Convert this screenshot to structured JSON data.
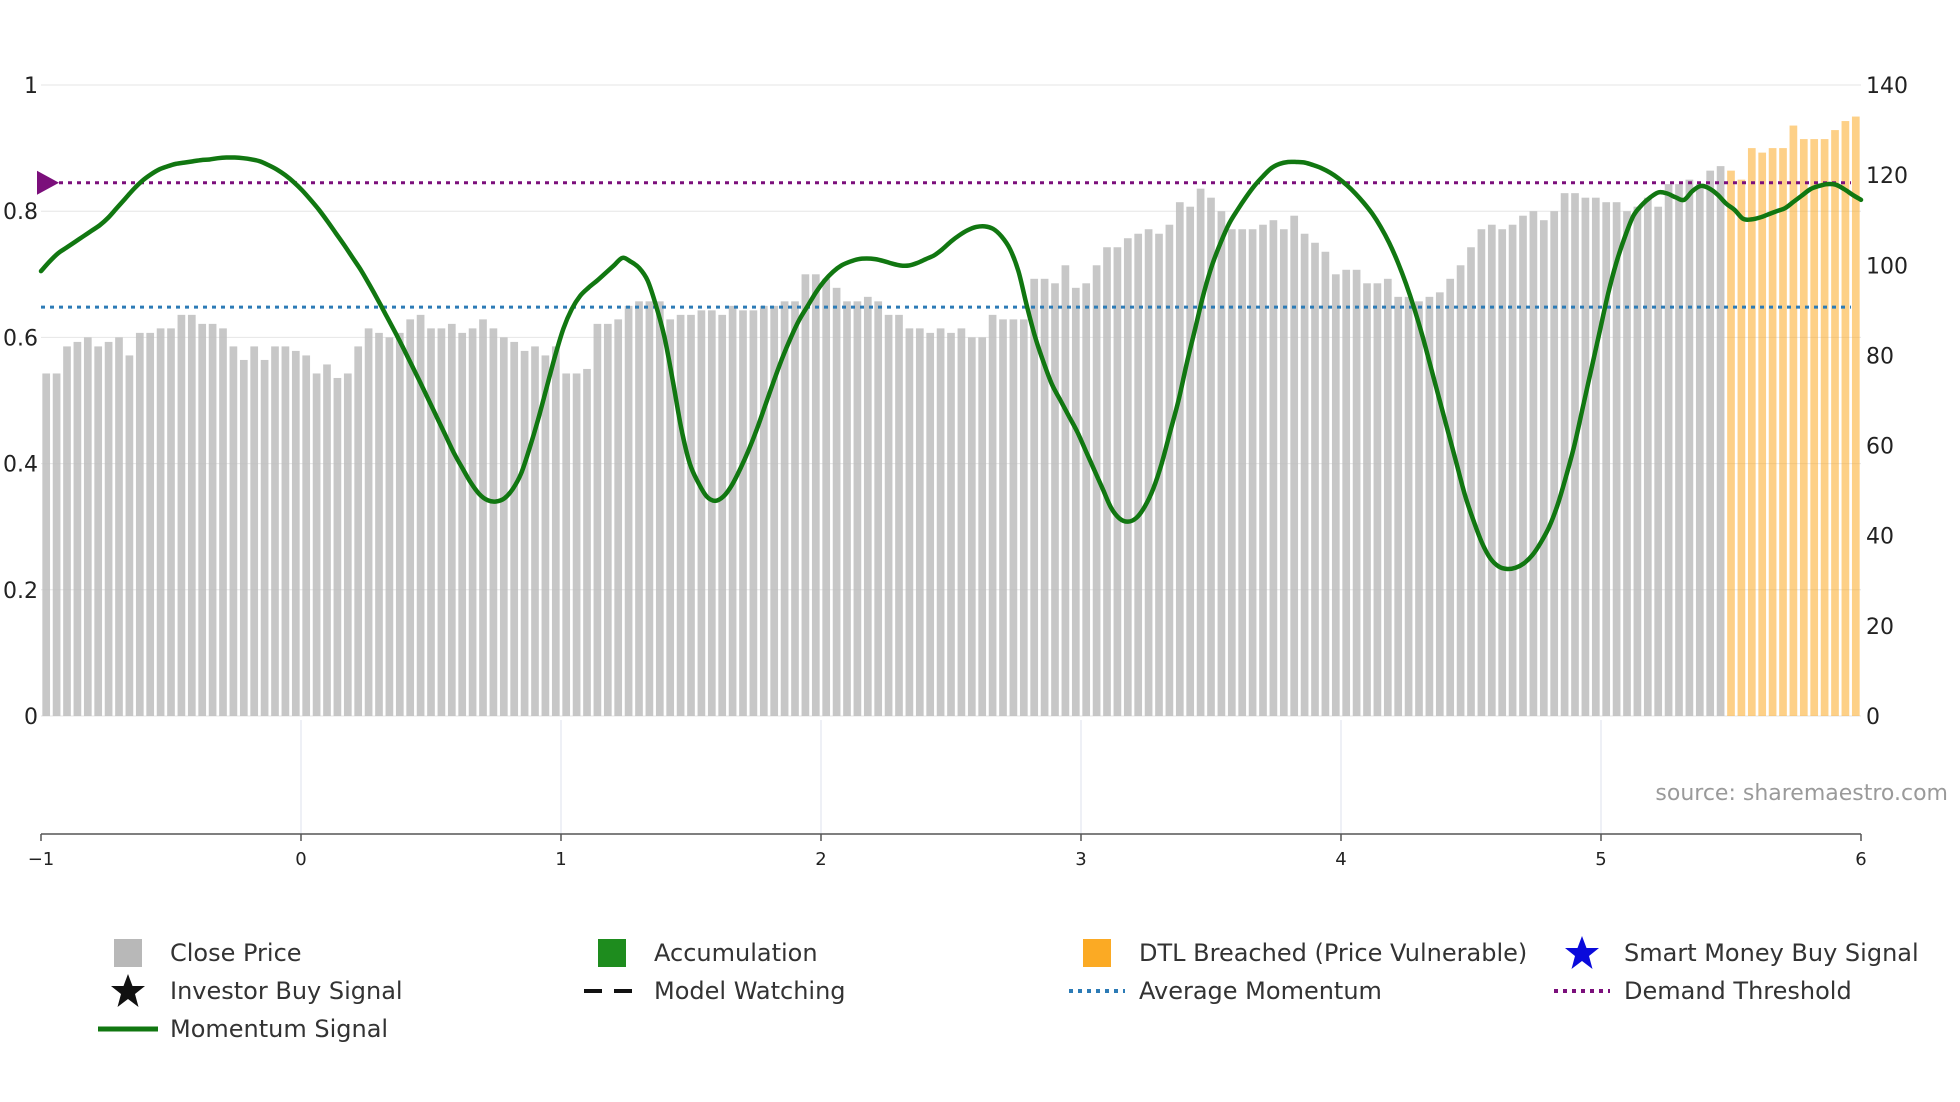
{
  "chart_data": {
    "type": "bar+line",
    "source": "source: sharemaestro.com",
    "x_axis": {
      "min": -1,
      "max": 6,
      "ticks": [
        "−1",
        "0",
        "1",
        "2",
        "3",
        "4",
        "5",
        "6"
      ]
    },
    "y_left": {
      "min": 0,
      "max": 1,
      "ticks": [
        "0",
        "0.2",
        "0.4",
        "0.6",
        "0.8",
        "1"
      ]
    },
    "y_right": {
      "min": 0,
      "max": 140,
      "ticks": [
        "0",
        "20",
        "40",
        "60",
        "80",
        "100",
        "120",
        "140"
      ]
    },
    "demand_threshold": 0.845,
    "average_momentum": 0.648,
    "breach_start_index": 162,
    "close_price": [
      76,
      76,
      82,
      83,
      84,
      82,
      83,
      84,
      80,
      85,
      85,
      86,
      86,
      89,
      89,
      87,
      87,
      86,
      82,
      79,
      82,
      79,
      82,
      82,
      81,
      80,
      76,
      78,
      75,
      76,
      82,
      86,
      85,
      84,
      85,
      88,
      89,
      86,
      86,
      87,
      85,
      86,
      88,
      86,
      84,
      83,
      81,
      82,
      80,
      82,
      76,
      76,
      77,
      87,
      87,
      88,
      91,
      92,
      92,
      92,
      88,
      89,
      89,
      90,
      90,
      89,
      91,
      90,
      90,
      91,
      91,
      92,
      92,
      98,
      98,
      97,
      95,
      92,
      92,
      93,
      92,
      89,
      89,
      86,
      86,
      85,
      86,
      85,
      86,
      84,
      84,
      89,
      88,
      88,
      88,
      97,
      97,
      96,
      100,
      95,
      96,
      100,
      104,
      104,
      106,
      107,
      108,
      107,
      109,
      114,
      113,
      117,
      115,
      112,
      108,
      108,
      108,
      109,
      110,
      108,
      111,
      107,
      105,
      103,
      98,
      99,
      99,
      96,
      96,
      97,
      93,
      93,
      92,
      93,
      94,
      97,
      100,
      104,
      108,
      109,
      108,
      109,
      111,
      112,
      110,
      112,
      116,
      116,
      115,
      115,
      114,
      114,
      112,
      113,
      115,
      113,
      118,
      118,
      119,
      118,
      121,
      122,
      121,
      119,
      126,
      125,
      126,
      126,
      131,
      128,
      128,
      128,
      130,
      132,
      133
    ],
    "momentum_signal": [
      0.705,
      0.72,
      0.733,
      0.742,
      0.751,
      0.76,
      0.769,
      0.778,
      0.79,
      0.805,
      0.82,
      0.835,
      0.848,
      0.858,
      0.866,
      0.871,
      0.875,
      0.877,
      0.879,
      0.881,
      0.882,
      0.884,
      0.885,
      0.885,
      0.884,
      0.882,
      0.879,
      0.873,
      0.866,
      0.857,
      0.846,
      0.833,
      0.818,
      0.802,
      0.784,
      0.765,
      0.746,
      0.726,
      0.706,
      0.683,
      0.659,
      0.634,
      0.609,
      0.583,
      0.556,
      0.529,
      0.501,
      0.473,
      0.445,
      0.417,
      0.393,
      0.37,
      0.352,
      0.342,
      0.34,
      0.345,
      0.36,
      0.385,
      0.425,
      0.47,
      0.52,
      0.57,
      0.614,
      0.645,
      0.666,
      0.679,
      0.69,
      0.702,
      0.714,
      0.726,
      0.72,
      0.71,
      0.69,
      0.65,
      0.6,
      0.53,
      0.455,
      0.4,
      0.37,
      0.348,
      0.341,
      0.348,
      0.366,
      0.392,
      0.422,
      0.456,
      0.494,
      0.532,
      0.568,
      0.6,
      0.628,
      0.65,
      0.672,
      0.69,
      0.704,
      0.714,
      0.72,
      0.724,
      0.725,
      0.724,
      0.721,
      0.717,
      0.714,
      0.714,
      0.718,
      0.724,
      0.73,
      0.74,
      0.752,
      0.762,
      0.77,
      0.775,
      0.776,
      0.772,
      0.76,
      0.74,
      0.705,
      0.65,
      0.6,
      0.56,
      0.525,
      0.5,
      0.475,
      0.45,
      0.42,
      0.39,
      0.36,
      0.33,
      0.313,
      0.308,
      0.314,
      0.332,
      0.36,
      0.4,
      0.45,
      0.5,
      0.56,
      0.615,
      0.67,
      0.715,
      0.75,
      0.78,
      0.802,
      0.822,
      0.84,
      0.855,
      0.868,
      0.875,
      0.878,
      0.878,
      0.877,
      0.873,
      0.868,
      0.861,
      0.852,
      0.841,
      0.828,
      0.813,
      0.796,
      0.775,
      0.75,
      0.72,
      0.685,
      0.645,
      0.6,
      0.55,
      0.5,
      0.45,
      0.4,
      0.35,
      0.31,
      0.275,
      0.25,
      0.237,
      0.233,
      0.235,
      0.242,
      0.255,
      0.275,
      0.3,
      0.335,
      0.38,
      0.43,
      0.49,
      0.55,
      0.61,
      0.67,
      0.72,
      0.76,
      0.793,
      0.81,
      0.822,
      0.83,
      0.828,
      0.822,
      0.818,
      0.832,
      0.84,
      0.836,
      0.826,
      0.812,
      0.802,
      0.788,
      0.787,
      0.79,
      0.795,
      0.8,
      0.805,
      0.815,
      0.825,
      0.835,
      0.84,
      0.843,
      0.842,
      0.835,
      0.826,
      0.818
    ]
  },
  "legend": [
    {
      "label": "Close Price",
      "symbol": "square",
      "color": "#b8b8b8"
    },
    {
      "label": "Accumulation",
      "symbol": "square",
      "color": "#1e8c1e"
    },
    {
      "label": "DTL Breached (Price Vulnerable)",
      "symbol": "square",
      "color": "#fbaa24"
    },
    {
      "label": "Smart Money Buy Signal",
      "symbol": "star",
      "color": "#0a0adb"
    },
    {
      "label": "Investor Buy Signal",
      "symbol": "star",
      "color": "#111111"
    },
    {
      "label": "Model Watching",
      "symbol": "dash",
      "color": "#111111"
    },
    {
      "label": "Average Momentum",
      "symbol": "dot",
      "color": "#2c7bb6"
    },
    {
      "label": "Demand Threshold",
      "symbol": "dot",
      "color": "#7b0f7b"
    },
    {
      "label": "Momentum Signal",
      "symbol": "line",
      "color": "#117711"
    }
  ]
}
